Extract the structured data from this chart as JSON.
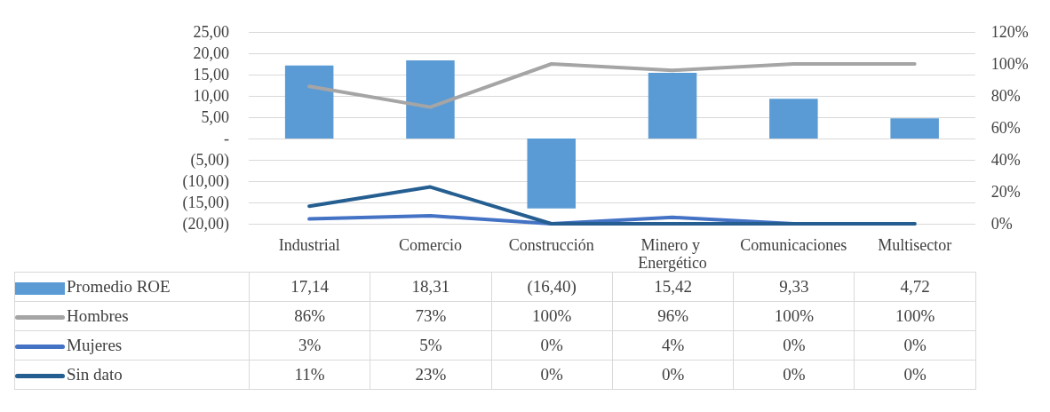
{
  "chart_data": {
    "type": "bar",
    "categories": [
      "Industrial",
      "Comercio",
      "Construcción",
      "Minero y Energético",
      "Comunicaciones",
      "Multisector"
    ],
    "series": [
      {
        "name": "Promedio ROE",
        "color": "#5b9bd5",
        "values": [
          17.14,
          18.31,
          -16.4,
          15.42,
          9.33,
          4.72
        ],
        "value_labels": [
          "17,14",
          "18,31",
          "(16,40)",
          "15,42",
          "9,33",
          "4,72"
        ]
      },
      {
        "name": "Hombres",
        "type": "line",
        "axis": "y2",
        "color": "#a5a5a5",
        "values": [
          86,
          73,
          100,
          96,
          100,
          100
        ],
        "value_labels": [
          "86%",
          "73%",
          "100%",
          "96%",
          "100%",
          "100%"
        ]
      },
      {
        "name": "Mujeres",
        "type": "line",
        "axis": "y2",
        "color": "#4472c4",
        "values": [
          3,
          5,
          0,
          4,
          0,
          0
        ],
        "value_labels": [
          "3%",
          "5%",
          "0%",
          "4%",
          "0%",
          "0%"
        ]
      },
      {
        "name": "Sin dato",
        "type": "line",
        "axis": "y2",
        "color": "#255e91",
        "values": [
          11,
          23,
          0,
          0,
          0,
          0
        ],
        "value_labels": [
          "11%",
          "23%",
          "0%",
          "0%",
          "0%",
          "0%"
        ]
      }
    ],
    "ylim": [
      -20,
      25
    ],
    "yticks": [
      {
        "value": -20,
        "label": "(20,00)"
      },
      {
        "value": -15,
        "label": "(15,00)"
      },
      {
        "value": -10,
        "label": "(10,00)"
      },
      {
        "value": -5,
        "label": "(5,00)"
      },
      {
        "value": 0,
        "label": "-"
      },
      {
        "value": 5,
        "label": "5,00"
      },
      {
        "value": 10,
        "label": "10,00"
      },
      {
        "value": 15,
        "label": "15,00"
      },
      {
        "value": 20,
        "label": "20,00"
      },
      {
        "value": 25,
        "label": "25,00"
      }
    ],
    "y2lim": [
      0,
      120
    ],
    "y2ticks": [
      {
        "value": 0,
        "label": "0%"
      },
      {
        "value": 20,
        "label": "20%"
      },
      {
        "value": 40,
        "label": "40%"
      },
      {
        "value": 60,
        "label": "60%"
      },
      {
        "value": 80,
        "label": "80%"
      },
      {
        "value": 100,
        "label": "100%"
      },
      {
        "value": 120,
        "label": "120%"
      }
    ],
    "grid": "y",
    "legend": "bottom",
    "marker": "none",
    "line_style": "solid"
  }
}
